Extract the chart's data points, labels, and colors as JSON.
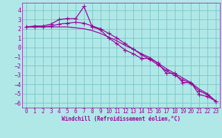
{
  "x": [
    0,
    1,
    2,
    3,
    4,
    5,
    6,
    7,
    8,
    9,
    10,
    11,
    12,
    13,
    14,
    15,
    16,
    17,
    18,
    19,
    20,
    21,
    22,
    23
  ],
  "line1": [
    2.2,
    2.3,
    2.3,
    2.5,
    3.0,
    3.1,
    3.1,
    4.4,
    2.2,
    1.9,
    1.0,
    0.4,
    -0.3,
    -0.7,
    -1.2,
    -1.2,
    -1.7,
    -2.8,
    -2.8,
    -3.8,
    -3.8,
    -5.1,
    -5.3,
    -5.8
  ],
  "line2": [
    2.2,
    2.2,
    2.2,
    2.2,
    2.2,
    2.2,
    2.1,
    2.0,
    1.8,
    1.5,
    1.1,
    0.7,
    0.2,
    -0.2,
    -0.7,
    -1.1,
    -1.7,
    -2.3,
    -2.8,
    -3.3,
    -3.8,
    -4.5,
    -5.0,
    -5.8
  ],
  "line3": [
    2.2,
    2.2,
    2.2,
    2.3,
    2.5,
    2.6,
    2.7,
    2.6,
    2.3,
    2.0,
    1.5,
    1.0,
    0.4,
    -0.2,
    -0.8,
    -1.3,
    -1.9,
    -2.5,
    -3.0,
    -3.5,
    -3.9,
    -4.7,
    -5.1,
    -5.8
  ],
  "line_color": "#990099",
  "bg_color": "#b0e8e8",
  "grid_color": "#80c8c8",
  "xlabel": "Windchill (Refroidissement éolien,°C)",
  "ylim": [
    -6.5,
    4.8
  ],
  "xlim": [
    -0.5,
    23.5
  ],
  "yticks": [
    -6,
    -5,
    -4,
    -3,
    -2,
    -1,
    0,
    1,
    2,
    3,
    4
  ],
  "xticks": [
    0,
    1,
    2,
    3,
    4,
    5,
    6,
    7,
    8,
    9,
    10,
    11,
    12,
    13,
    14,
    15,
    16,
    17,
    18,
    19,
    20,
    21,
    22,
    23
  ],
  "marker": "+",
  "markersize": 4,
  "linewidth": 0.9
}
